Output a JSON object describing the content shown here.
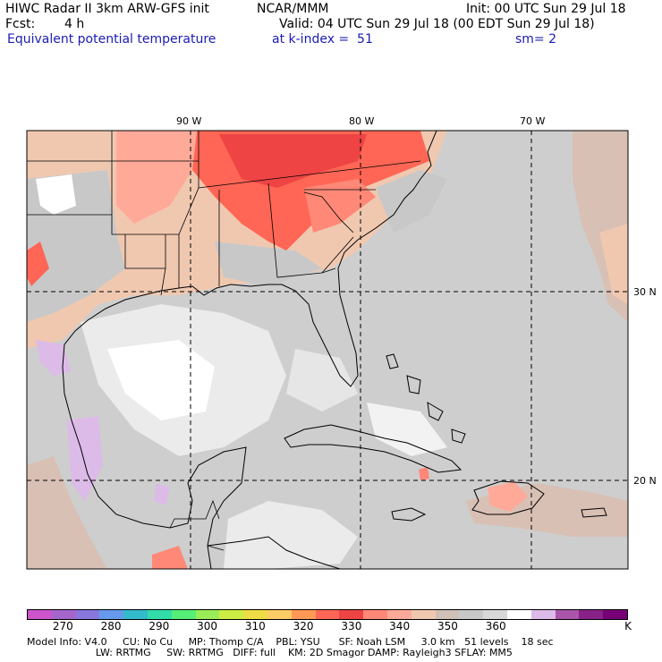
{
  "header": {
    "title": "HIWC Radar II 3km ARW-GFS init",
    "org": "NCAR/MMM",
    "init": "Init: 00 UTC Sun 29 Jul 18",
    "fcst_label": "Fcst:",
    "fcst_value": "4 h",
    "valid": "Valid: 04 UTC Sun 29 Jul 18 (00 EDT Sun 29 Jul 18)",
    "field": "Equivalent potential temperature",
    "level": "at k-index =  51",
    "smoothing": "sm= 2"
  },
  "map": {
    "lon_labels": [
      "90 W",
      "80 W",
      "70 W"
    ],
    "lat_labels": [
      "30 N",
      "20 N"
    ]
  },
  "colorbar": {
    "colors": [
      "#cc55cc",
      "#a566cc",
      "#8877dd",
      "#6699ee",
      "#33bbcc",
      "#33ddaa",
      "#55ee77",
      "#99ee55",
      "#ccee44",
      "#eedd44",
      "#ffcc66",
      "#ff9955",
      "#ff6655",
      "#ee4444",
      "#ff8877",
      "#ffaa99",
      "#f0c8b0",
      "#d0c0b8",
      "#c8c8c8",
      "#d8d8d8",
      "#ffffff",
      "#ddbbe8",
      "#aa55aa",
      "#882288",
      "#770077"
    ],
    "labels": [
      "270",
      "280",
      "290",
      "300",
      "310",
      "320",
      "330",
      "340",
      "350",
      "360"
    ],
    "unit": "K"
  },
  "footer": {
    "line1": "Model Info: V4.0     CU: No Cu     MP: Thomp C/A    PBL: YSU      SF: Noah LSM     3.0 km   51 levels    18 sec",
    "line2": "                      LW: RRTMG     SW: RRTMG   DIFF: full    KM: 2D Smagor DAMP: Rayleigh3 SFLAY: MM5"
  }
}
